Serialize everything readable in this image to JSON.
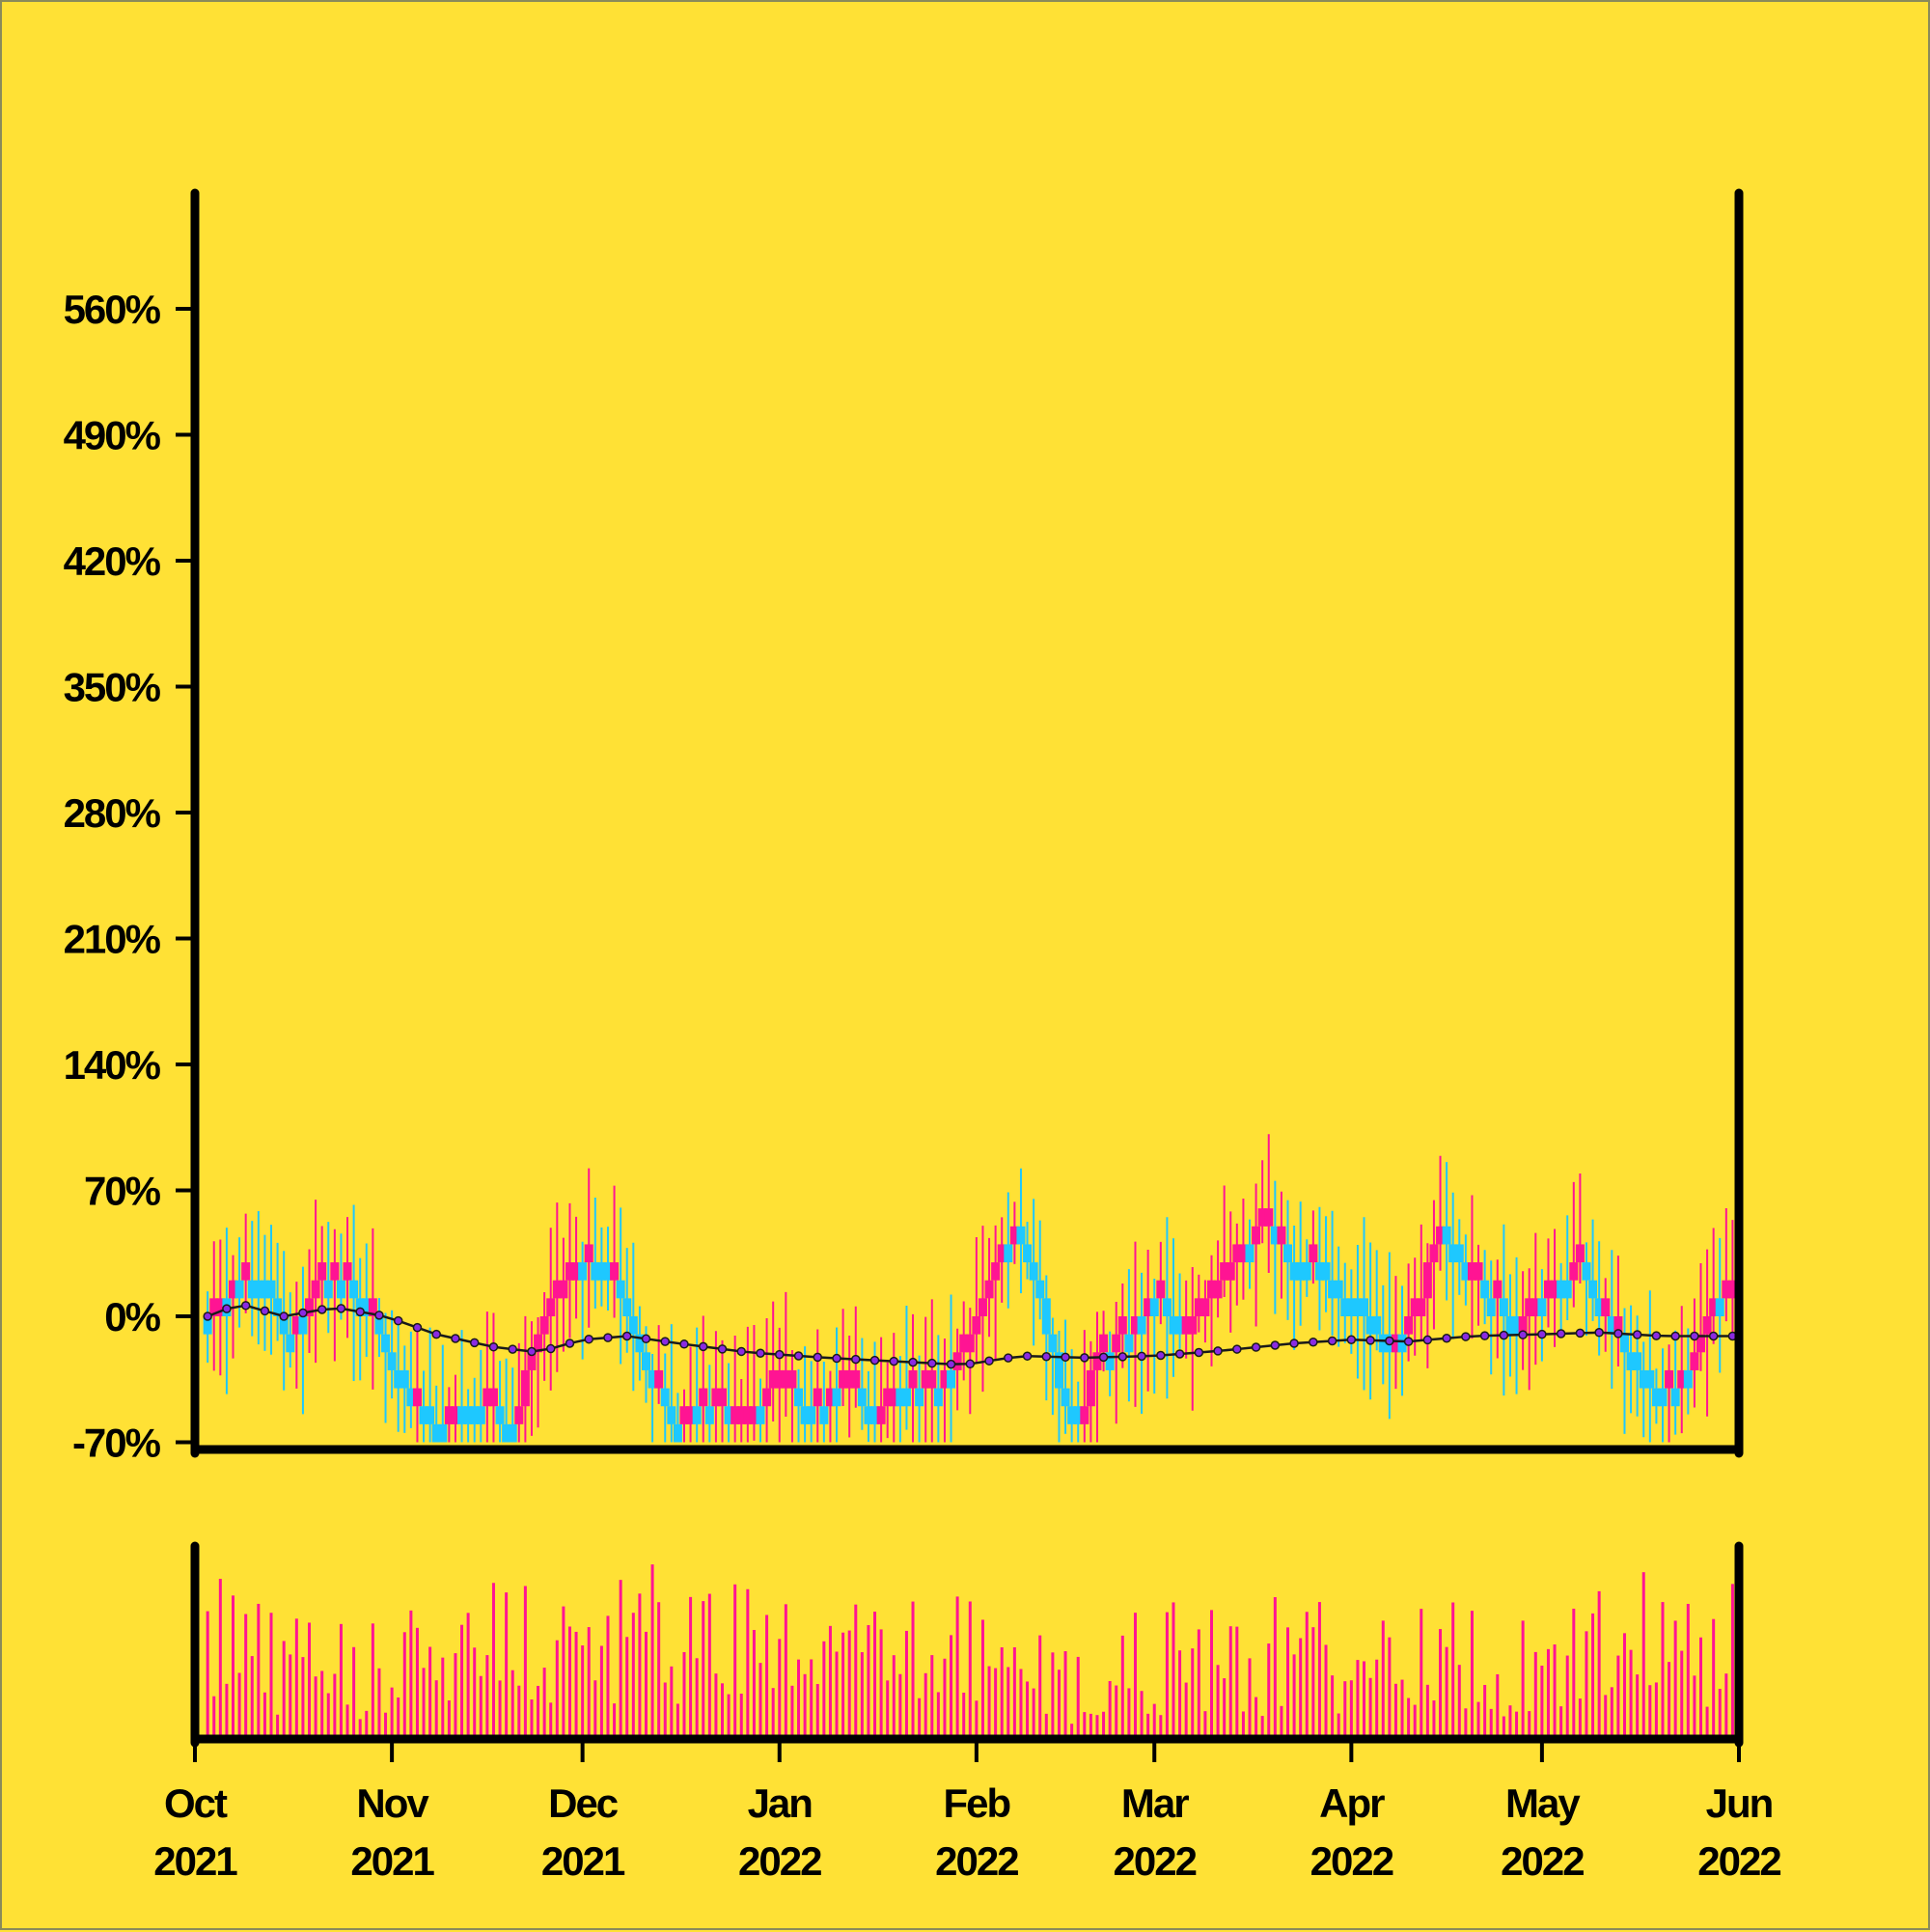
{
  "chart_data": {
    "type": "candlestick",
    "title": "",
    "xlabel": "",
    "ylabel": "",
    "y_unit": "%",
    "ylim": [
      -70,
      600
    ],
    "y_ticks": [
      "-70%",
      "0%",
      "70%",
      "140%",
      "210%",
      "280%",
      "350%",
      "420%",
      "490%",
      "560%"
    ],
    "x_range": [
      "2021-10-01",
      "2022-06-01"
    ],
    "x_ticks": [
      {
        "date": "2021-10-01",
        "month": "Oct",
        "year": "2021"
      },
      {
        "date": "2021-11-01",
        "month": "Nov",
        "year": "2021"
      },
      {
        "date": "2021-12-01",
        "month": "Dec",
        "year": "2021"
      },
      {
        "date": "2022-01-01",
        "month": "Jan",
        "year": "2022"
      },
      {
        "date": "2022-02-01",
        "month": "Feb",
        "year": "2022"
      },
      {
        "date": "2022-03-01",
        "month": "Mar",
        "year": "2022"
      },
      {
        "date": "2022-04-01",
        "month": "Apr",
        "year": "2022"
      },
      {
        "date": "2022-05-01",
        "month": "May",
        "year": "2022"
      },
      {
        "date": "2022-06-01",
        "month": "Jun",
        "year": "2022"
      }
    ],
    "price_trend": [
      {
        "date": "2021-10-03",
        "value": 0
      },
      {
        "date": "2021-10-08",
        "value": 20
      },
      {
        "date": "2021-10-12",
        "value": 15
      },
      {
        "date": "2021-10-15",
        "value": -15
      },
      {
        "date": "2021-10-20",
        "value": 15
      },
      {
        "date": "2021-10-25",
        "value": 20
      },
      {
        "date": "2021-10-30",
        "value": -10
      },
      {
        "date": "2021-11-04",
        "value": -50
      },
      {
        "date": "2021-11-08",
        "value": -60
      },
      {
        "date": "2021-11-14",
        "value": -50
      },
      {
        "date": "2021-11-20",
        "value": -60
      },
      {
        "date": "2021-11-24",
        "value": -10
      },
      {
        "date": "2021-11-28",
        "value": 20
      },
      {
        "date": "2021-12-02",
        "value": 30
      },
      {
        "date": "2021-12-06",
        "value": 20
      },
      {
        "date": "2021-12-10",
        "value": -20
      },
      {
        "date": "2021-12-15",
        "value": -60
      },
      {
        "date": "2021-12-20",
        "value": -50
      },
      {
        "date": "2021-12-26",
        "value": -60
      },
      {
        "date": "2021-12-31",
        "value": -40
      },
      {
        "date": "2022-01-06",
        "value": -50
      },
      {
        "date": "2022-01-12",
        "value": -40
      },
      {
        "date": "2022-01-16",
        "value": -60
      },
      {
        "date": "2022-01-20",
        "value": -40
      },
      {
        "date": "2022-01-25",
        "value": -40
      },
      {
        "date": "2022-01-30",
        "value": -20
      },
      {
        "date": "2022-02-03",
        "value": 20
      },
      {
        "date": "2022-02-07",
        "value": 50
      },
      {
        "date": "2022-02-11",
        "value": 10
      },
      {
        "date": "2022-02-14",
        "value": -40
      },
      {
        "date": "2022-02-17",
        "value": -60
      },
      {
        "date": "2022-02-20",
        "value": -20
      },
      {
        "date": "2022-02-25",
        "value": -10
      },
      {
        "date": "2022-03-01",
        "value": 10
      },
      {
        "date": "2022-03-05",
        "value": -10
      },
      {
        "date": "2022-03-10",
        "value": 10
      },
      {
        "date": "2022-03-14",
        "value": 30
      },
      {
        "date": "2022-03-18",
        "value": 50
      },
      {
        "date": "2022-03-22",
        "value": 30
      },
      {
        "date": "2022-03-26",
        "value": 30
      },
      {
        "date": "2022-03-31",
        "value": 10
      },
      {
        "date": "2022-04-04",
        "value": 0
      },
      {
        "date": "2022-04-07",
        "value": -20
      },
      {
        "date": "2022-04-11",
        "value": 0
      },
      {
        "date": "2022-04-15",
        "value": 50
      },
      {
        "date": "2022-04-19",
        "value": 20
      },
      {
        "date": "2022-04-23",
        "value": 10
      },
      {
        "date": "2022-04-27",
        "value": -10
      },
      {
        "date": "2022-05-01",
        "value": 10
      },
      {
        "date": "2022-05-05",
        "value": 20
      },
      {
        "date": "2022-05-07",
        "value": 30
      },
      {
        "date": "2022-05-10",
        "value": 0
      },
      {
        "date": "2022-05-14",
        "value": -20
      },
      {
        "date": "2022-05-18",
        "value": -40
      },
      {
        "date": "2022-05-22",
        "value": -40
      },
      {
        "date": "2022-05-25",
        "value": -20
      },
      {
        "date": "2022-05-28",
        "value": 10
      },
      {
        "date": "2022-05-31",
        "value": 10
      }
    ],
    "moving_average": [
      {
        "date": "2021-10-03",
        "value": 0
      },
      {
        "date": "2021-10-08",
        "value": 7
      },
      {
        "date": "2021-10-15",
        "value": 0
      },
      {
        "date": "2021-10-23",
        "value": 5
      },
      {
        "date": "2021-10-31",
        "value": 0
      },
      {
        "date": "2021-11-08",
        "value": -10
      },
      {
        "date": "2021-11-17",
        "value": -17
      },
      {
        "date": "2021-11-24",
        "value": -20
      },
      {
        "date": "2021-12-01",
        "value": -13
      },
      {
        "date": "2021-12-08",
        "value": -11
      },
      {
        "date": "2021-12-16",
        "value": -15
      },
      {
        "date": "2021-12-27",
        "value": -20
      },
      {
        "date": "2022-01-08",
        "value": -23
      },
      {
        "date": "2022-01-19",
        "value": -25
      },
      {
        "date": "2022-01-30",
        "value": -27
      },
      {
        "date": "2022-02-08",
        "value": -22
      },
      {
        "date": "2022-02-18",
        "value": -23
      },
      {
        "date": "2022-03-01",
        "value": -22
      },
      {
        "date": "2022-03-12",
        "value": -19
      },
      {
        "date": "2022-03-23",
        "value": -15
      },
      {
        "date": "2022-04-01",
        "value": -13
      },
      {
        "date": "2022-04-10",
        "value": -14
      },
      {
        "date": "2022-04-20",
        "value": -11
      },
      {
        "date": "2022-05-01",
        "value": -10
      },
      {
        "date": "2022-05-10",
        "value": -9
      },
      {
        "date": "2022-05-20",
        "value": -11
      },
      {
        "date": "2022-05-31",
        "value": -11
      }
    ],
    "volume_profile": [
      {
        "date": "2021-10-01",
        "value": 0.6
      },
      {
        "date": "2021-10-15",
        "value": 0.4
      },
      {
        "date": "2021-11-01",
        "value": 0.4
      },
      {
        "date": "2021-11-15",
        "value": 0.6
      },
      {
        "date": "2021-12-01",
        "value": 0.5
      },
      {
        "date": "2021-12-15",
        "value": 0.6
      },
      {
        "date": "2022-01-01",
        "value": 0.45
      },
      {
        "date": "2022-01-15",
        "value": 0.45
      },
      {
        "date": "2022-02-01",
        "value": 0.5
      },
      {
        "date": "2022-02-15",
        "value": 0.3
      },
      {
        "date": "2022-03-01",
        "value": 0.45
      },
      {
        "date": "2022-03-15",
        "value": 0.45
      },
      {
        "date": "2022-04-01",
        "value": 0.5
      },
      {
        "date": "2022-04-15",
        "value": 0.45
      },
      {
        "date": "2022-05-01",
        "value": 0.4
      },
      {
        "date": "2022-05-15",
        "value": 0.55
      },
      {
        "date": "2022-06-01",
        "value": 0.5
      }
    ],
    "colors": {
      "up": "#ff1493",
      "down": "#1ec8ff",
      "volume": "#ff1493",
      "moving_average": "#8a2be2",
      "axis": "#000000",
      "background": "#ffe135"
    }
  }
}
